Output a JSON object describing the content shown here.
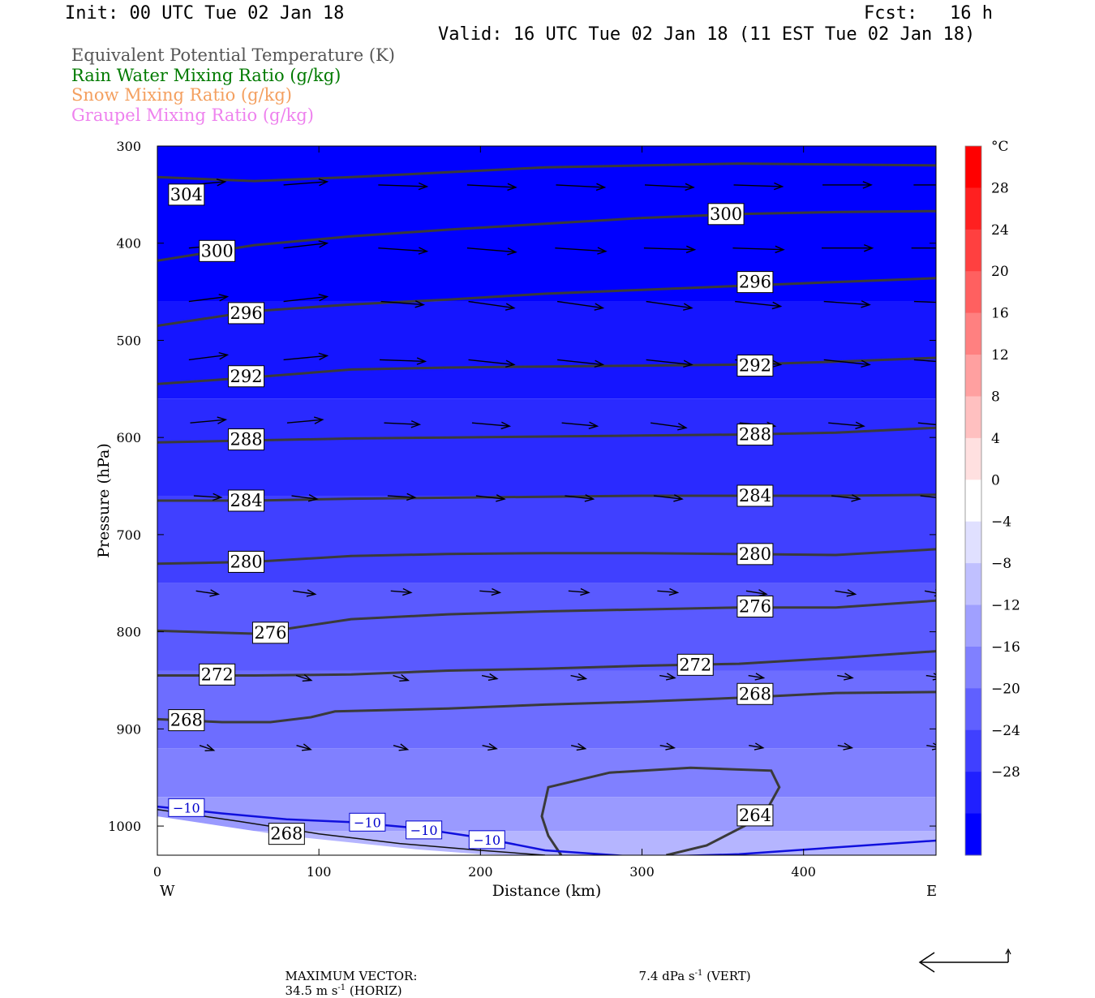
{
  "header": {
    "init": "Init: 00 UTC Tue 02 Jan 18",
    "fcst": "Fcst:   16 h",
    "valid": "Valid: 16 UTC Tue 02 Jan 18 (11 EST Tue 02 Jan 18)"
  },
  "legend": [
    {
      "text": "Equivalent Potential Temperature (K)",
      "color": "#555555"
    },
    {
      "text": "Rain Water Mixing Ratio (g/kg)",
      "color": "#007a00"
    },
    {
      "text": "Snow Mixing Ratio (g/kg)",
      "color": "#f4a060"
    },
    {
      "text": "Graupel Mixing Ratio (g/kg)",
      "color": "#ee82ee"
    }
  ],
  "footer": {
    "max_vector_label": "MAXIMUM VECTOR:",
    "horiz_value": "34.5 m s",
    "horiz_exp": "-1",
    "horiz_tag": " (HORIZ)",
    "vert_value": "7.4 dPa s",
    "vert_exp": "-1",
    "vert_tag": " (VERT)"
  },
  "chart_data": {
    "type": "contour",
    "xlabel": "Distance (km)",
    "ylabel": "Pressure (hPa)",
    "xlim": [
      0,
      482
    ],
    "ylim": [
      1030,
      300
    ],
    "x_ticks": [
      0,
      100,
      200,
      300,
      400
    ],
    "y_ticks": [
      300,
      400,
      500,
      600,
      700,
      800,
      900,
      1000
    ],
    "x_end_labels": {
      "left": "W",
      "right": "E"
    },
    "colorbar": {
      "unit": "°C",
      "levels": [
        28,
        24,
        20,
        16,
        12,
        8,
        4,
        0,
        -4,
        -8,
        -12,
        -16,
        -20,
        -24,
        -28
      ],
      "level_labels": [
        "28",
        "24",
        "20",
        "16",
        "12",
        "8",
        "4",
        "0",
        "−4",
        "−8",
        "−12",
        "−16",
        "−20",
        "−24",
        "−28"
      ],
      "colors": [
        "#ff0000",
        "#ff2020",
        "#ff4040",
        "#ff6060",
        "#ff8080",
        "#ffa0a0",
        "#ffc0c0",
        "#ffe0e0",
        "#ffffff",
        "#e0e0ff",
        "#c0c0ff",
        "#a0a0ff",
        "#8080ff",
        "#6060ff",
        "#4040ff",
        "#2020ff",
        "#0000ff"
      ]
    },
    "temperature_bands": [
      {
        "p_top": 300,
        "p_bottom": 460,
        "color": "#0000ff"
      },
      {
        "p_top": 460,
        "p_bottom": 560,
        "color": "#1515ff"
      },
      {
        "p_top": 560,
        "p_bottom": 660,
        "color": "#2a2aff"
      },
      {
        "p_top": 660,
        "p_bottom": 750,
        "color": "#4040ff"
      },
      {
        "p_top": 750,
        "p_bottom": 840,
        "color": "#5a5aff"
      },
      {
        "p_top": 840,
        "p_bottom": 920,
        "color": "#6d6dff"
      },
      {
        "p_top": 920,
        "p_bottom": 970,
        "color": "#8080ff"
      },
      {
        "p_top": 970,
        "p_bottom": 1005,
        "color": "#9a9aff"
      },
      {
        "p_top": 1005,
        "p_bottom": 1030,
        "color": "#b5b5ff"
      }
    ],
    "theta_e_contours": [
      {
        "value": 304,
        "points": [
          [
            0,
            332
          ],
          [
            60,
            336
          ],
          [
            120,
            332
          ],
          [
            180,
            327
          ],
          [
            240,
            322
          ],
          [
            300,
            320
          ],
          [
            360,
            318
          ],
          [
            420,
            319
          ],
          [
            482,
            320
          ]
        ],
        "labels": [
          [
            18,
            350
          ]
        ]
      },
      {
        "value": 300,
        "points": [
          [
            0,
            418
          ],
          [
            60,
            402
          ],
          [
            120,
            393
          ],
          [
            180,
            386
          ],
          [
            240,
            380
          ],
          [
            300,
            374
          ],
          [
            360,
            370
          ],
          [
            420,
            368
          ],
          [
            482,
            367
          ]
        ],
        "labels": [
          [
            37,
            408
          ],
          [
            352,
            370
          ]
        ]
      },
      {
        "value": 296,
        "points": [
          [
            0,
            485
          ],
          [
            60,
            470
          ],
          [
            120,
            463
          ],
          [
            180,
            458
          ],
          [
            240,
            452
          ],
          [
            300,
            448
          ],
          [
            360,
            444
          ],
          [
            420,
            440
          ],
          [
            482,
            436
          ]
        ],
        "labels": [
          [
            55,
            472
          ],
          [
            370,
            440
          ]
        ]
      },
      {
        "value": 292,
        "points": [
          [
            0,
            545
          ],
          [
            60,
            538
          ],
          [
            120,
            530
          ],
          [
            180,
            528
          ],
          [
            240,
            527
          ],
          [
            300,
            526
          ],
          [
            360,
            525
          ],
          [
            420,
            522
          ],
          [
            482,
            518
          ]
        ],
        "labels": [
          [
            55,
            537
          ],
          [
            370,
            526
          ]
        ]
      },
      {
        "value": 288,
        "points": [
          [
            0,
            605
          ],
          [
            60,
            603
          ],
          [
            120,
            601
          ],
          [
            180,
            600
          ],
          [
            240,
            599
          ],
          [
            300,
            598
          ],
          [
            360,
            597
          ],
          [
            420,
            595
          ],
          [
            482,
            590
          ]
        ],
        "labels": [
          [
            55,
            602
          ],
          [
            370,
            597
          ]
        ]
      },
      {
        "value": 284,
        "points": [
          [
            0,
            665
          ],
          [
            60,
            665
          ],
          [
            120,
            663
          ],
          [
            180,
            662
          ],
          [
            240,
            661
          ],
          [
            300,
            660
          ],
          [
            360,
            660
          ],
          [
            420,
            660
          ],
          [
            482,
            659
          ]
        ],
        "labels": [
          [
            55,
            665
          ],
          [
            370,
            660
          ]
        ]
      },
      {
        "value": 280,
        "points": [
          [
            0,
            730
          ],
          [
            60,
            728
          ],
          [
            120,
            722
          ],
          [
            180,
            720
          ],
          [
            240,
            719
          ],
          [
            300,
            719
          ],
          [
            360,
            720
          ],
          [
            420,
            721
          ],
          [
            482,
            715
          ]
        ],
        "labels": [
          [
            55,
            728
          ],
          [
            370,
            720
          ]
        ]
      },
      {
        "value": 276,
        "points": [
          [
            0,
            799
          ],
          [
            60,
            802
          ],
          [
            120,
            787
          ],
          [
            180,
            782
          ],
          [
            240,
            779
          ],
          [
            300,
            777
          ],
          [
            360,
            775
          ],
          [
            420,
            775
          ],
          [
            482,
            768
          ]
        ],
        "labels": [
          [
            70,
            801
          ],
          [
            370,
            774
          ]
        ]
      },
      {
        "value": 272,
        "points": [
          [
            0,
            845
          ],
          [
            60,
            845
          ],
          [
            120,
            844
          ],
          [
            180,
            840
          ],
          [
            240,
            838
          ],
          [
            300,
            835
          ],
          [
            360,
            833
          ],
          [
            420,
            827
          ],
          [
            482,
            820
          ]
        ],
        "labels": [
          [
            37,
            844
          ],
          [
            333,
            834
          ]
        ]
      },
      {
        "value": 268,
        "points": [
          [
            0,
            890
          ],
          [
            40,
            893
          ],
          [
            70,
            893
          ],
          [
            95,
            888
          ],
          [
            110,
            882
          ],
          [
            180,
            879
          ],
          [
            240,
            875
          ],
          [
            300,
            872
          ],
          [
            360,
            868
          ],
          [
            420,
            863
          ],
          [
            482,
            862
          ]
        ],
        "labels": [
          [
            18,
            891
          ],
          [
            370,
            864
          ]
        ]
      },
      {
        "value": 264,
        "points": [
          [
            250,
            1030
          ],
          [
            242,
            1010
          ],
          [
            238,
            990
          ],
          [
            242,
            960
          ],
          [
            280,
            945
          ],
          [
            330,
            940
          ],
          [
            380,
            943
          ],
          [
            385,
            960
          ],
          [
            375,
            990
          ],
          [
            340,
            1020
          ],
          [
            315,
            1030
          ]
        ],
        "labels": [
          [
            370,
            989
          ]
        ]
      }
    ],
    "surface_theta_e": {
      "value": 268,
      "points": [
        [
          0,
          983
        ],
        [
          50,
          995
        ],
        [
          100,
          1008
        ],
        [
          150,
          1018
        ],
        [
          200,
          1025
        ],
        [
          240,
          1030
        ]
      ],
      "labels": [
        [
          80,
          1008
        ]
      ]
    },
    "isotherm_minus10": {
      "value": -10,
      "points": [
        [
          0,
          980
        ],
        [
          40,
          987
        ],
        [
          80,
          993
        ],
        [
          120,
          996
        ],
        [
          160,
          1002
        ],
        [
          200,
          1012
        ],
        [
          240,
          1025
        ],
        [
          300,
          1032
        ],
        [
          360,
          1029
        ],
        [
          420,
          1022
        ],
        [
          482,
          1015
        ]
      ],
      "labels": [
        [
          18,
          981
        ],
        [
          130,
          996
        ],
        [
          165,
          1004
        ],
        [
          204,
          1014
        ]
      ]
    },
    "terrain_top": [
      [
        0,
        990
      ],
      [
        40,
        1000
      ],
      [
        80,
        1010
      ],
      [
        120,
        1017
      ],
      [
        160,
        1024
      ],
      [
        200,
        1029
      ],
      [
        240,
        1030
      ],
      [
        482,
        1030
      ]
    ],
    "wind_vectors": {
      "columns_km": [
        30,
        90,
        150,
        205,
        260,
        315,
        370,
        425,
        480
      ],
      "rows": [
        {
          "p": 340,
          "dx": [
            34,
            43,
            48,
            48,
            48,
            48,
            48,
            48,
            43
          ],
          "dp": [
            -4,
            -4,
            2,
            3,
            3,
            3,
            2,
            0,
            0
          ]
        },
        {
          "p": 405,
          "dx": [
            38,
            43,
            48,
            48,
            50,
            50,
            50,
            50,
            48
          ],
          "dp": [
            -4,
            -6,
            4,
            5,
            4,
            2,
            2,
            0,
            0
          ]
        },
        {
          "p": 460,
          "dx": [
            38,
            43,
            42,
            45,
            45,
            45,
            45,
            45,
            42
          ],
          "dp": [
            -6,
            -6,
            4,
            8,
            8,
            8,
            6,
            4,
            2
          ]
        },
        {
          "p": 520,
          "dx": [
            38,
            43,
            45,
            45,
            45,
            45,
            45,
            45,
            42
          ],
          "dp": [
            -6,
            -5,
            2,
            6,
            6,
            6,
            6,
            6,
            4
          ]
        },
        {
          "p": 585,
          "dx": [
            35,
            35,
            35,
            37,
            35,
            35,
            35,
            35,
            33
          ],
          "dp": [
            -4,
            -4,
            2,
            4,
            4,
            6,
            4,
            4,
            4
          ]
        },
        {
          "p": 660,
          "dx": [
            27,
            25,
            27,
            28,
            28,
            28,
            28,
            28,
            28
          ],
          "dp": [
            2,
            4,
            2,
            4,
            4,
            4,
            4,
            4,
            4
          ]
        },
        {
          "p": 758,
          "dx": [
            22,
            22,
            20,
            20,
            20,
            20,
            20,
            20,
            18
          ],
          "dp": [
            4,
            4,
            2,
            2,
            2,
            2,
            4,
            4,
            4
          ]
        },
        {
          "p": 845,
          "dx": [
            15,
            15,
            15,
            15,
            15,
            15,
            15,
            15,
            15
          ],
          "dp": [
            6,
            6,
            6,
            4,
            4,
            3,
            3,
            3,
            3
          ]
        },
        {
          "p": 917,
          "dx": [
            14,
            14,
            14,
            14,
            14,
            14,
            14,
            14,
            14
          ],
          "dp": [
            6,
            5,
            5,
            4,
            4,
            3,
            3,
            3,
            3
          ]
        }
      ]
    }
  }
}
